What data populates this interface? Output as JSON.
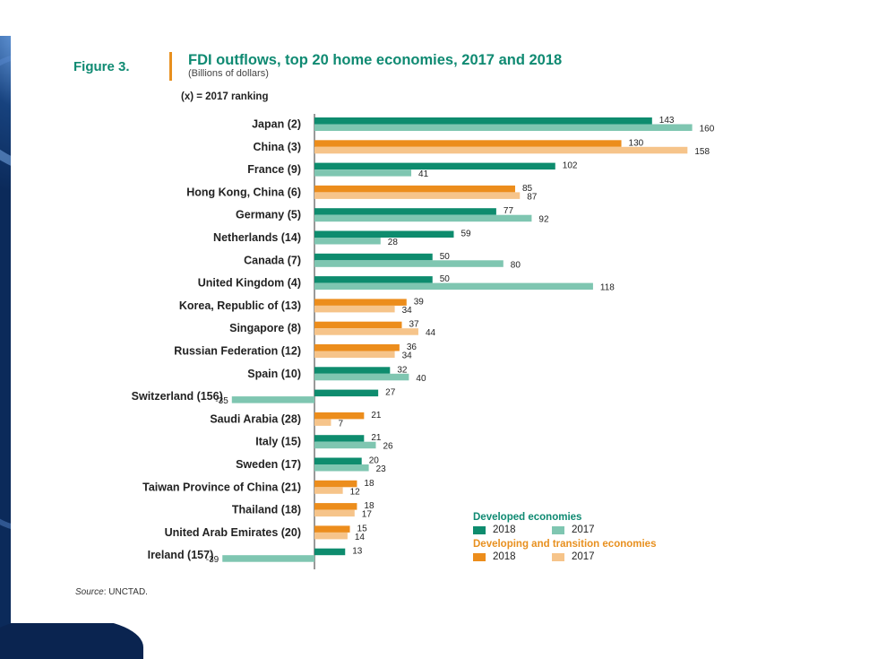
{
  "figure_label": "Figure 3.",
  "colors": {
    "developed_2018": "#0e8c6e",
    "developed_2017": "#7fc6b1",
    "developing_2018": "#ec8d1c",
    "developing_2017": "#f6c48a",
    "title": "#0f8a72",
    "developing_title": "#e8901f"
  },
  "legend": {
    "developed_title": "Developed economies",
    "developing_title": "Developing and  transition economies",
    "label_2018": "2018",
    "label_2017": "2017"
  },
  "source_prefix": "Source",
  "source_text": ": UNCTAD.",
  "chart_data": {
    "type": "bar",
    "orientation": "horizontal",
    "title": "FDI outflows, top 20 home economies, 2017 and 2018",
    "subtitle": "(Billions of dollars)",
    "note": "(x) = 2017 ranking",
    "series_names": [
      "2018",
      "2017"
    ],
    "categories": [
      {
        "label": "Japan (2)",
        "group": "developed",
        "v2018": 143,
        "v2017": 160
      },
      {
        "label": "China (3)",
        "group": "developing",
        "v2018": 130,
        "v2017": 158
      },
      {
        "label": "France (9)",
        "group": "developed",
        "v2018": 102,
        "v2017": 41
      },
      {
        "label": "Hong Kong, China (6)",
        "group": "developing",
        "v2018": 85,
        "v2017": 87
      },
      {
        "label": "Germany (5)",
        "group": "developed",
        "v2018": 77,
        "v2017": 92
      },
      {
        "label": "Netherlands (14)",
        "group": "developed",
        "v2018": 59,
        "v2017": 28
      },
      {
        "label": "Canada (7)",
        "group": "developed",
        "v2018": 50,
        "v2017": 80
      },
      {
        "label": "United Kingdom (4)",
        "group": "developed",
        "v2018": 50,
        "v2017": 118
      },
      {
        "label": "Korea, Republic of (13)",
        "group": "developing",
        "v2018": 39,
        "v2017": 34
      },
      {
        "label": "Singapore (8)",
        "group": "developing",
        "v2018": 37,
        "v2017": 44
      },
      {
        "label": "Russian Federation (12)",
        "group": "developing",
        "v2018": 36,
        "v2017": 34
      },
      {
        "label": "Spain (10)",
        "group": "developed",
        "v2018": 32,
        "v2017": 40
      },
      {
        "label": "Switzerland (156)",
        "group": "developed",
        "v2018": 27,
        "v2017": -35
      },
      {
        "label": "Saudi Arabia (28)",
        "group": "developing",
        "v2018": 21,
        "v2017": 7
      },
      {
        "label": "Italy (15)",
        "group": "developed",
        "v2018": 21,
        "v2017": 26
      },
      {
        "label": "Sweden (17)",
        "group": "developed",
        "v2018": 20,
        "v2017": 23
      },
      {
        "label": "Taiwan Province of China (21)",
        "group": "developing",
        "v2018": 18,
        "v2017": 12
      },
      {
        "label": "Thailand (18)",
        "group": "developing",
        "v2018": 18,
        "v2017": 17
      },
      {
        "label": "United Arab Emirates (20)",
        "group": "developing",
        "v2018": 15,
        "v2017": 14
      },
      {
        "label": "Ireland (157)",
        "group": "developed",
        "v2018": 13,
        "v2017": -39
      }
    ],
    "xlim": [
      -39,
      160
    ],
    "grid": false,
    "legend_position": "bottom-right"
  }
}
